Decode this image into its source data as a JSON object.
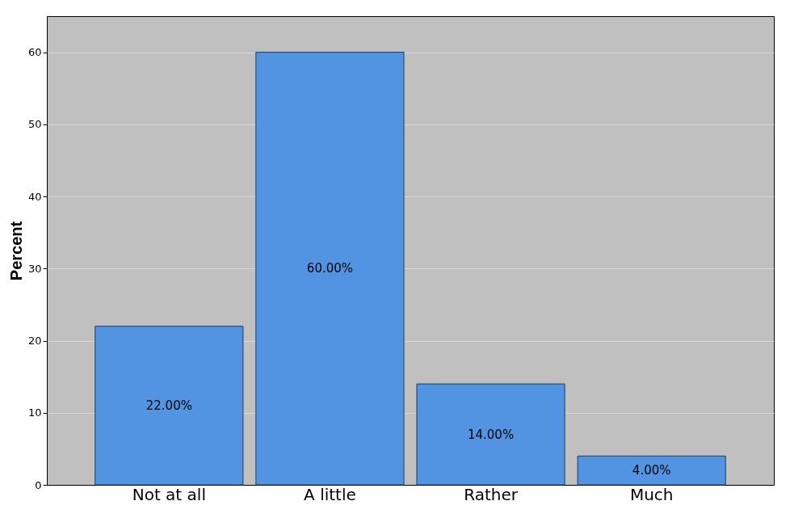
{
  "chart_data": {
    "type": "bar",
    "ylabel": "Percent",
    "categories": [
      "Not at all",
      "A little",
      "Rather",
      "Much"
    ],
    "values": [
      22,
      60,
      14,
      4
    ],
    "value_labels": [
      "22.00%",
      "60.00%",
      "14.00%",
      "4.00%"
    ],
    "color": "#5294e2",
    "ylim": [
      0,
      65
    ],
    "yticks": [
      0,
      10,
      20,
      30,
      40,
      50,
      60
    ],
    "grid": "y"
  }
}
